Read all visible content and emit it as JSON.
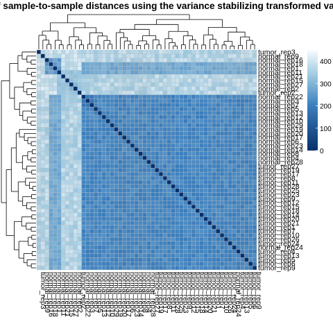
{
  "chart_data": {
    "type": "heatmap",
    "title": "f sample-to-sample distances using the variance stabilizing transformed valu",
    "xlabel": "",
    "ylabel": "",
    "row_labels": [
      "tumor_rep3",
      "normal_rep9",
      "normal_rep16",
      "normal_rep18",
      "normal_rep1",
      "normal_rep11",
      "normal_rep21",
      "normal_rep15",
      "normal_rep27",
      "normal_rep2",
      "tumor_rep2",
      "normal_rep22",
      "normal_rep3",
      "normal_rep7",
      "normal_rep5",
      "normal_rep13",
      "normal_rep12",
      "normal_rep10",
      "normal_rep29",
      "normal_rep19",
      "normal_rep20",
      "normal_rep17",
      "normal_rep6",
      "normal_rep23",
      "normal_rep14",
      "normal_rep8",
      "normal_rep4",
      "normal_rep28",
      "tumor_rep27",
      "tumor_rep19",
      "tumor_rep17",
      "tumor_rep8",
      "tumor_rep11",
      "tumor_rep28",
      "tumor_rep25",
      "tumor_rep23",
      "tumor_rep9",
      "tumor_rep12",
      "tumor_rep15",
      "tumor_rep18",
      "tumor_rep14",
      "tumor_rep20",
      "tumor_rep21",
      "tumor_rep1",
      "tumor_rep7",
      "tumor_rep10",
      "tumor_rep26",
      "tumor_rep24",
      "normal_rep24",
      "tumor_rep4",
      "tumor_rep13",
      "tumor_rep5",
      "tumor_rep6",
      "tumor_rep9"
    ],
    "col_labels_note": "column labels mirror the row labels (rotated, illegible in source)",
    "value_range": [
      0,
      450
    ],
    "legend": {
      "ticks": [
        0,
        100,
        200,
        300,
        400
      ],
      "low_color": "#08306b",
      "mid_color": "#4a90c8",
      "high_color": "#f7fbff",
      "placement": "right"
    },
    "clusters": {
      "outlier_rows": [
        "tumor_rep3",
        "normal_rep9",
        "normal_rep16",
        "normal_rep18",
        "normal_rep1",
        "normal_rep11",
        "normal_rep21",
        "normal_rep15",
        "normal_rep27",
        "normal_rep2",
        "tumor_rep2"
      ],
      "main_block_value": 205,
      "outlier_to_outlier_value": 360,
      "outlier_to_main_value": 330,
      "diagonal_value": 0
    },
    "dendrogram": true
  }
}
